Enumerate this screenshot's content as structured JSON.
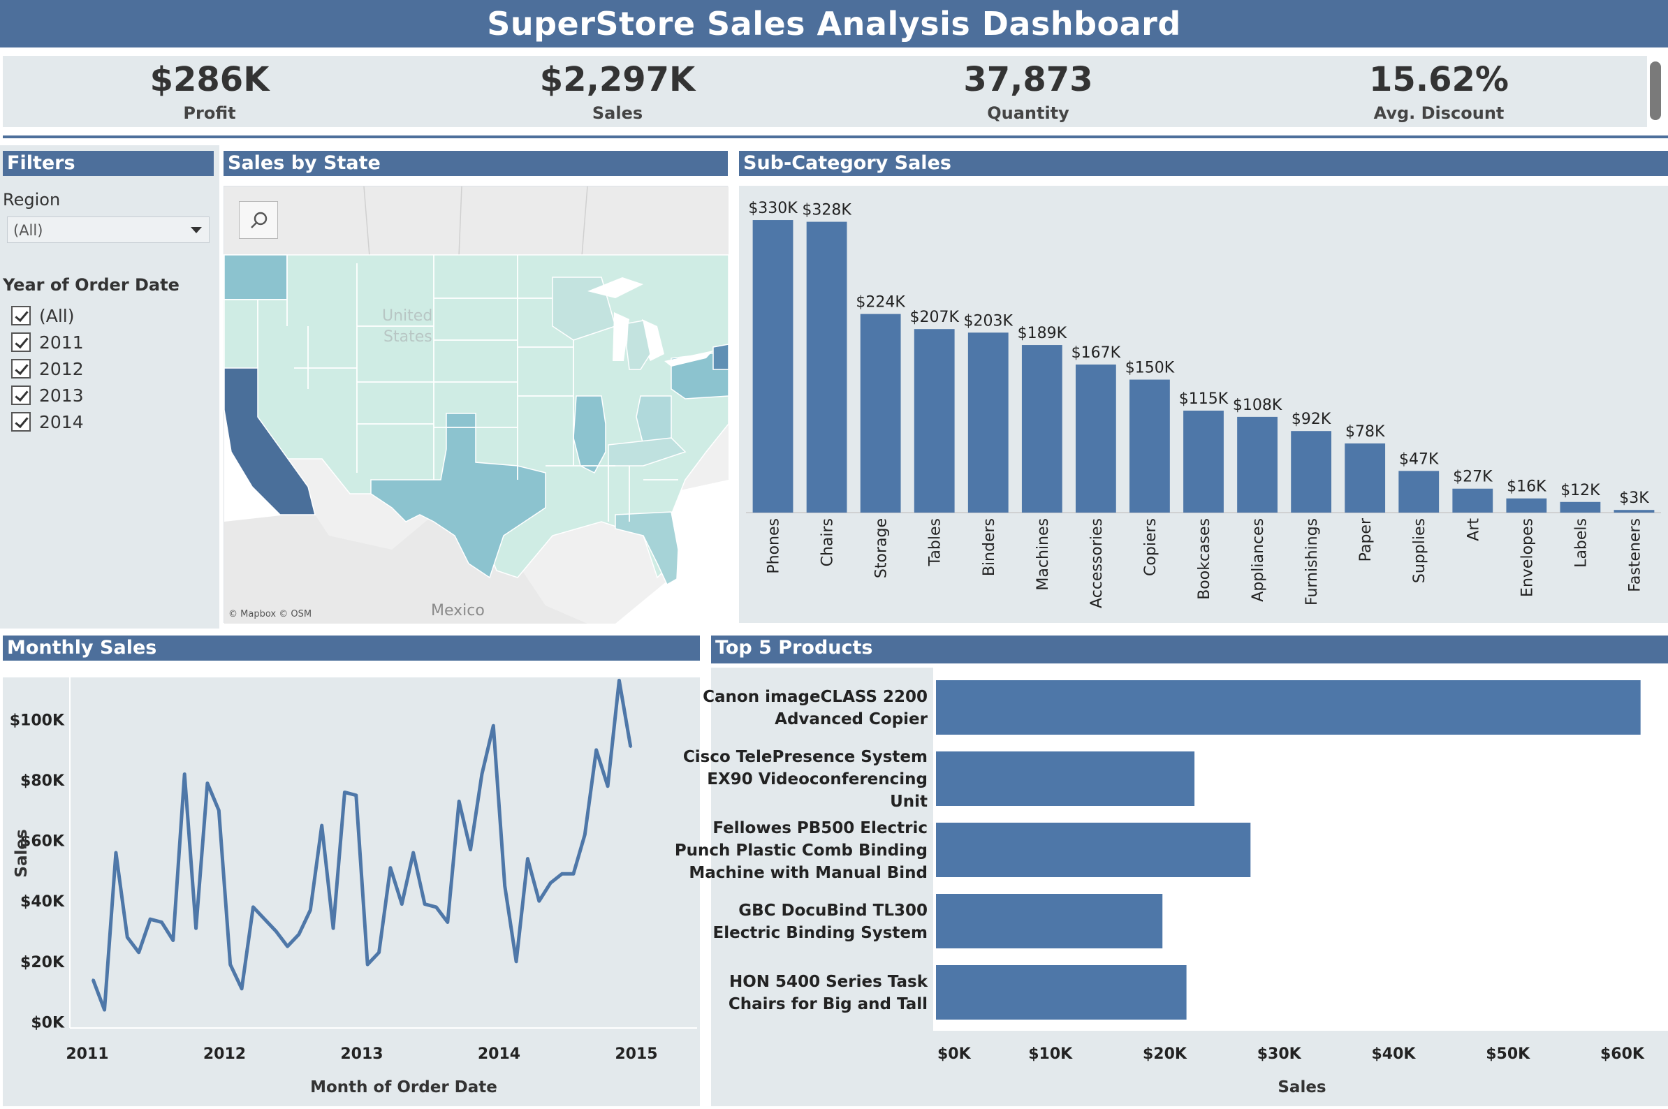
{
  "header": {
    "title": "SuperStore Sales Analysis Dashboard"
  },
  "kpis": [
    {
      "value": "$286K",
      "label": "Profit"
    },
    {
      "value": "$2,297K",
      "label": "Sales"
    },
    {
      "value": "37,873",
      "label": "Quantity"
    },
    {
      "value": "15.62%",
      "label": "Avg. Discount"
    }
  ],
  "filters": {
    "title": "Filters",
    "region_label": "Region",
    "region_value": "(All)",
    "year_label": "Year of Order Date",
    "year_options": [
      "(All)",
      "2011",
      "2012",
      "2013",
      "2014"
    ]
  },
  "map": {
    "title": "Sales by State",
    "country_label_1": "United",
    "country_label_2": "States",
    "mexico_label": "Mexico",
    "attribution": "© Mapbox © OSM",
    "colors": {
      "low": "#cbe9e3",
      "mid": "#8cc3cf",
      "high": "#4a6f9a",
      "land": "#e7e7e7",
      "water": "#ffffff"
    }
  },
  "colors": {
    "accent": "#4d6f9b",
    "bar": "#4e77a8",
    "panel": "#e3e9ec"
  },
  "chart_data": [
    {
      "type": "bar",
      "title": "Sub-Category Sales",
      "categories": [
        "Phones",
        "Chairs",
        "Storage",
        "Tables",
        "Binders",
        "Machines",
        "Accessories",
        "Copiers",
        "Bookcases",
        "Appliances",
        "Furnishings",
        "Paper",
        "Supplies",
        "Art",
        "Envelopes",
        "Labels",
        "Fasteners"
      ],
      "values": [
        330,
        328,
        224,
        207,
        203,
        189,
        167,
        150,
        115,
        108,
        92,
        78,
        47,
        27,
        16,
        12,
        3
      ],
      "value_labels": [
        "$330K",
        "$328K",
        "$224K",
        "$207K",
        "$203K",
        "$189K",
        "$167K",
        "$150K",
        "$115K",
        "$108K",
        "$92K",
        "$78K",
        "$47K",
        "$27K",
        "$16K",
        "$12K",
        "$3K"
      ],
      "unit": "thousands USD",
      "ylim": [
        0,
        345
      ]
    },
    {
      "type": "line",
      "title": "Monthly Sales",
      "xlabel": "Month of Order Date",
      "ylabel": "Sales",
      "x_ticks": [
        "2011",
        "2012",
        "2013",
        "2014",
        "2015"
      ],
      "y_ticks": [
        "$0K",
        "$20K",
        "$40K",
        "$60K",
        "$80K",
        "$100K"
      ],
      "y_tick_values": [
        0,
        20,
        40,
        60,
        80,
        100
      ],
      "ylim": [
        -2,
        114
      ],
      "x_start": "2011-01",
      "series": [
        {
          "values": [
            14,
            4,
            56,
            28,
            23,
            34,
            33,
            27,
            82,
            31,
            79,
            70,
            19,
            11,
            38,
            34,
            30,
            25,
            29,
            37,
            65,
            31,
            76,
            75,
            19,
            23,
            51,
            39,
            56,
            39,
            38,
            33,
            73,
            57,
            82,
            98,
            45,
            20,
            54,
            40,
            46,
            49,
            49,
            62,
            90,
            78,
            113,
            91
          ]
        }
      ]
    },
    {
      "type": "bar",
      "orientation": "horizontal",
      "title": "Top 5 Products",
      "xlabel": "Sales",
      "categories": [
        [
          "Canon imageCLASS 2200",
          "Advanced Copier"
        ],
        [
          "Cisco TelePresence System",
          "EX90 Videoconferencing",
          "Unit"
        ],
        [
          "Fellowes PB500 Electric",
          "Punch Plastic Comb Binding",
          "Machine with Manual Bind"
        ],
        [
          "GBC DocuBind TL300",
          "Electric Binding System"
        ],
        [
          "HON 5400 Series Task",
          "Chairs for Big and Tall"
        ]
      ],
      "values": [
        61.6,
        22.6,
        27.5,
        19.8,
        21.9
      ],
      "x_ticks": [
        "$0K",
        "$10K",
        "$20K",
        "$30K",
        "$40K",
        "$50K",
        "$60K"
      ],
      "x_tick_values": [
        0,
        10,
        20,
        30,
        40,
        50,
        60
      ],
      "xlim": [
        0,
        64
      ]
    }
  ]
}
